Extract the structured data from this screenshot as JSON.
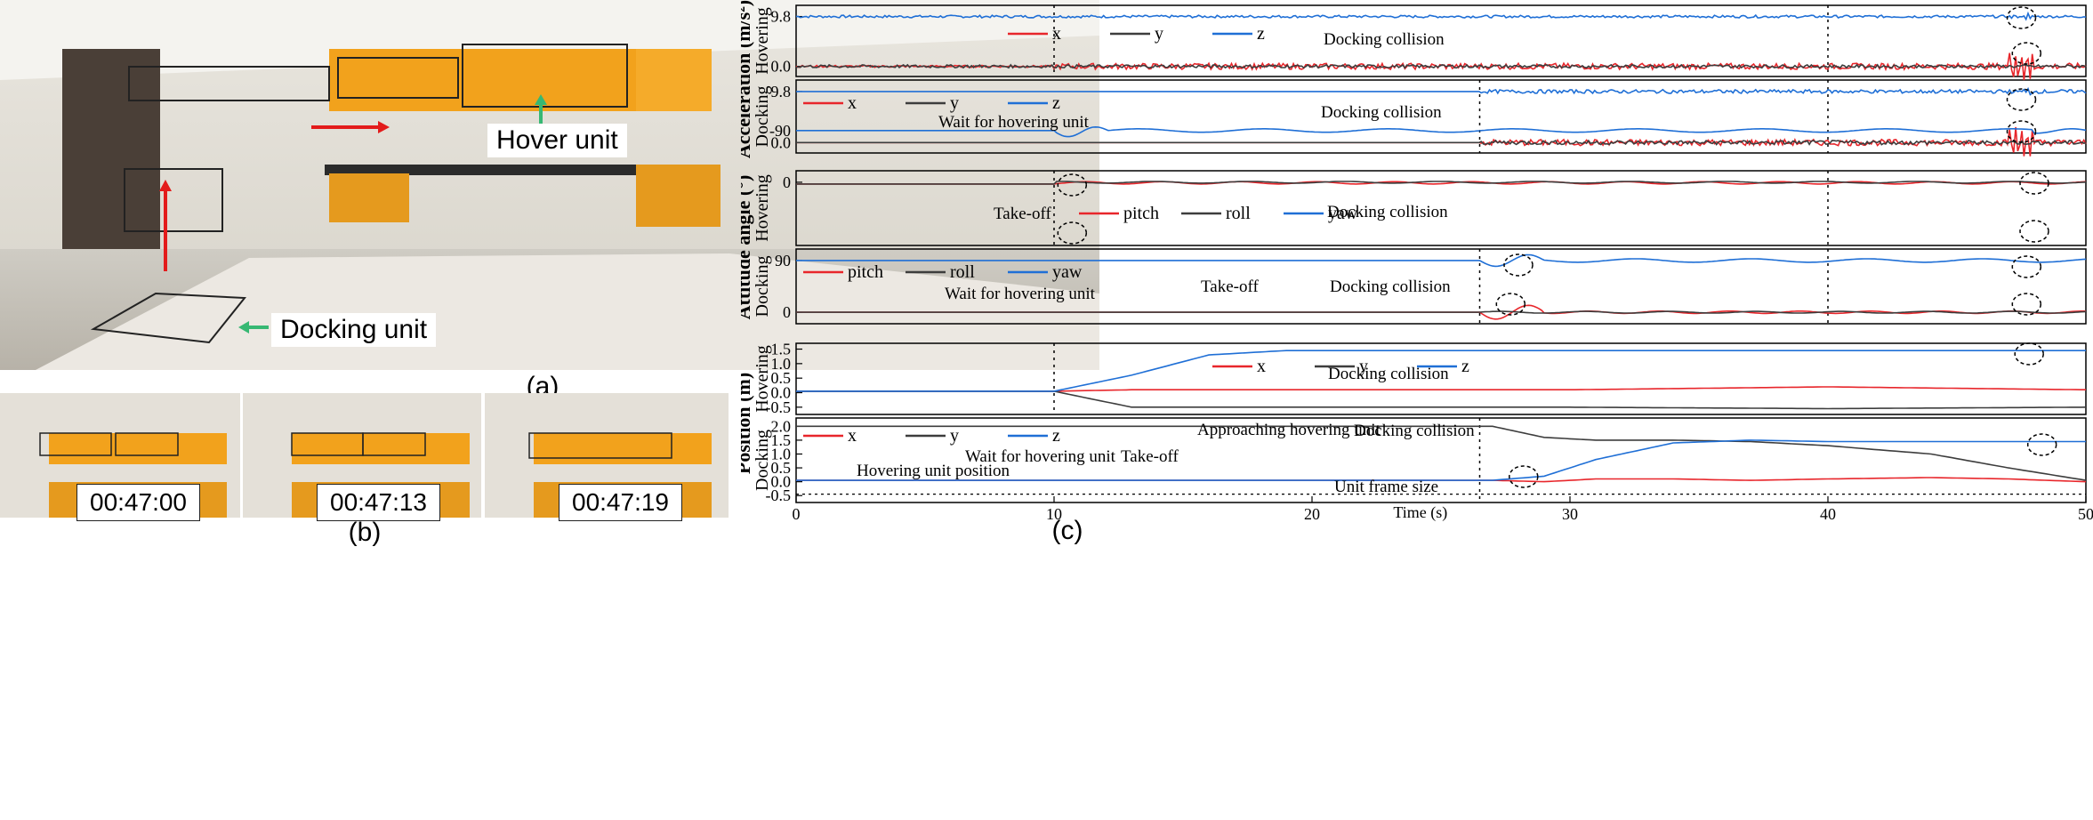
{
  "panel_a": {
    "hover_label": "Hover unit",
    "docking_label": "Docking unit",
    "caption": "(a)"
  },
  "panel_b": {
    "frames": [
      "00:47:00",
      "00:47:13",
      "00:47:19"
    ],
    "caption": "(b)"
  },
  "panel_c": {
    "caption": "(c)",
    "group_labels": {
      "acceleration": "Acceleration (m/s²)",
      "attitude": "Attitude angle (°)",
      "position": "Position (m)"
    },
    "sub_labels": [
      "Hovering",
      "Docking",
      "Hovering",
      "Docking",
      "Hovering",
      "Docking"
    ],
    "x_axis": {
      "label": "Time (s)",
      "ticks": [
        "0",
        "10",
        "20",
        "30",
        "40",
        "50"
      ]
    },
    "annotations": {
      "docking_collision": "Docking collision",
      "wait": "Wait for hovering unit",
      "takeoff": "Take-off",
      "approaching": "Approaching hovering unit",
      "hover_pos": "Hovering unit position",
      "frame_size": "Unit frame size"
    },
    "legends": {
      "xyz": [
        "x",
        "y",
        "z"
      ],
      "ang": [
        "pitch",
        "roll",
        "yaw"
      ]
    },
    "ticks": {
      "acc": [
        "9.8",
        "0.0"
      ],
      "att_h": [
        "-90",
        "0"
      ],
      "att_d": [
        "90",
        "0"
      ],
      "pos_h": [
        "1.5",
        "1.0",
        "0.5",
        "0.0",
        "-0.5"
      ],
      "pos_d": [
        "2.0",
        "1.5",
        "1.0",
        "0.5",
        "0.0",
        "-0.5"
      ]
    },
    "colors": {
      "x": "#e8262b",
      "y": "#3d3d3d",
      "z": "#1f6fd6"
    }
  },
  "chart_data": [
    {
      "type": "line",
      "title": "Hovering acceleration",
      "x": [
        0,
        50
      ],
      "series": [
        {
          "name": "z",
          "values": [
            9.8,
            9.8
          ]
        },
        {
          "name": "x",
          "values": [
            0.0,
            0.0
          ]
        },
        {
          "name": "y",
          "values": [
            0.0,
            0.0
          ]
        }
      ],
      "xlim": [
        0,
        50
      ]
    },
    {
      "type": "line",
      "title": "Docking acceleration",
      "x": [
        0,
        26.5,
        50
      ],
      "series": [
        {
          "name": "z",
          "values": [
            9.8,
            9.8,
            9.8
          ]
        },
        {
          "name": "x",
          "values": [
            0.0,
            0.0,
            0.0
          ]
        },
        {
          "name": "y",
          "values": [
            0.0,
            0.0,
            0.0
          ]
        }
      ],
      "xlim": [
        0,
        50
      ]
    },
    {
      "type": "line",
      "title": "Hovering attitude",
      "x": [
        0,
        10,
        50
      ],
      "series": [
        {
          "name": "yaw",
          "values": [
            -90,
            -90,
            -90
          ]
        },
        {
          "name": "pitch",
          "values": [
            0,
            0,
            0
          ]
        },
        {
          "name": "roll",
          "values": [
            0,
            0,
            0
          ]
        }
      ],
      "xlim": [
        0,
        50
      ]
    },
    {
      "type": "line",
      "title": "Docking attitude",
      "x": [
        0,
        26.5,
        50
      ],
      "series": [
        {
          "name": "yaw",
          "values": [
            90,
            90,
            90
          ]
        },
        {
          "name": "pitch",
          "values": [
            0,
            0,
            0
          ]
        },
        {
          "name": "roll",
          "values": [
            0,
            0,
            0
          ]
        }
      ],
      "xlim": [
        0,
        50
      ]
    },
    {
      "type": "line",
      "title": "Hovering position",
      "x": [
        0,
        10,
        13,
        16,
        19,
        30,
        40,
        50
      ],
      "series": [
        {
          "name": "x",
          "values": [
            0.05,
            0.05,
            0.1,
            0.1,
            0.1,
            0.1,
            0.2,
            0.1
          ]
        },
        {
          "name": "y",
          "values": [
            0.05,
            0.05,
            -0.5,
            -0.5,
            -0.5,
            -0.5,
            -0.55,
            -0.5
          ]
        },
        {
          "name": "z",
          "values": [
            0.05,
            0.05,
            0.6,
            1.3,
            1.45,
            1.45,
            1.45,
            1.45
          ]
        }
      ],
      "xlim": [
        0,
        50
      ],
      "ylim": [
        -0.7,
        1.7
      ]
    },
    {
      "type": "line",
      "title": "Docking position",
      "x": [
        0,
        27,
        29,
        31,
        34,
        37,
        40,
        44,
        47,
        50
      ],
      "series": [
        {
          "name": "x",
          "values": [
            0.05,
            0.05,
            0.0,
            0.1,
            0.1,
            0.05,
            0.1,
            0.15,
            0.1,
            0.0
          ]
        },
        {
          "name": "y",
          "values": [
            2.0,
            2.0,
            1.6,
            1.5,
            1.5,
            1.45,
            1.3,
            1.0,
            0.5,
            0.05
          ]
        },
        {
          "name": "z",
          "values": [
            0.05,
            0.05,
            0.2,
            0.8,
            1.4,
            1.5,
            1.45,
            1.45,
            1.45,
            1.45
          ]
        },
        {
          "name": "Hovering unit position",
          "values": [
            -0.45,
            -0.45,
            -0.45,
            -0.45,
            -0.45,
            -0.45,
            -0.45,
            -0.45,
            -0.45,
            -0.45
          ]
        }
      ],
      "xlim": [
        0,
        50
      ],
      "ylim": [
        -0.7,
        2.3
      ]
    }
  ]
}
